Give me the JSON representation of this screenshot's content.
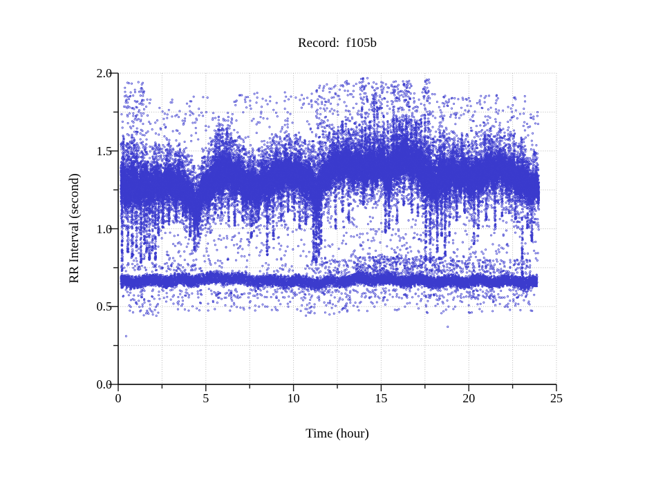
{
  "chart_data": {
    "type": "scatter",
    "title": "Record:  f105b",
    "xlabel": "Time (hour)",
    "ylabel": "RR Interval (second)",
    "xlim": [
      0,
      25
    ],
    "ylim": [
      0.0,
      2.0
    ],
    "x_major_ticks": [
      {
        "value": 0,
        "label": "0"
      },
      {
        "value": 5,
        "label": "5"
      },
      {
        "value": 10,
        "label": "10"
      },
      {
        "value": 15,
        "label": "15"
      },
      {
        "value": 20,
        "label": "20"
      },
      {
        "value": 25,
        "label": "25"
      }
    ],
    "x_minor_ticks": [
      2.5,
      7.5,
      12.5,
      17.5,
      22.5
    ],
    "y_major_ticks": [
      {
        "value": 0.0,
        "label": "0.0"
      },
      {
        "value": 0.5,
        "label": "0.5"
      },
      {
        "value": 1.0,
        "label": "1.0"
      },
      {
        "value": 1.5,
        "label": "1.5"
      },
      {
        "value": 2.0,
        "label": "2.0"
      }
    ],
    "y_minor_ticks": [
      0.25,
      0.75,
      1.25,
      1.75
    ],
    "grid": {
      "show": true,
      "x_interval": 2.5,
      "y_interval": 0.25,
      "style": "dotted",
      "color": "#b5b5b5"
    },
    "axis_color": "#151515",
    "marker": {
      "shape": "open-circle",
      "radius_px": 1.15,
      "stroke_px": 0.75,
      "color": "#3b3bcd"
    },
    "seed": 1234,
    "time_range": [
      0.15,
      24.0
    ],
    "series_model": {
      "description": "RR interval tachogram over 24 h: dense maternal band near 1.2-1.5 s with transient decelerations, dense second band near 0.66 s, sparse outliers 0.3-2.0 s",
      "main_band": {
        "count": 46000,
        "fuzz_prob": 0.1,
        "fuzz_max": 0.13,
        "profile": [
          [
            0.15,
            1.26,
            0.17
          ],
          [
            1.0,
            1.27,
            0.15
          ],
          [
            2.0,
            1.3,
            0.13
          ],
          [
            3.0,
            1.28,
            0.12
          ],
          [
            4.0,
            1.22,
            0.13
          ],
          [
            4.4,
            1.13,
            0.14
          ],
          [
            4.8,
            1.25,
            0.12
          ],
          [
            5.5,
            1.33,
            0.14
          ],
          [
            6.0,
            1.36,
            0.15
          ],
          [
            6.5,
            1.33,
            0.13
          ],
          [
            7.0,
            1.3,
            0.12
          ],
          [
            7.6,
            1.27,
            0.13
          ],
          [
            8.2,
            1.3,
            0.13
          ],
          [
            9.0,
            1.32,
            0.13
          ],
          [
            10.0,
            1.35,
            0.12
          ],
          [
            10.8,
            1.33,
            0.13
          ],
          [
            11.35,
            1.24,
            0.16
          ],
          [
            11.8,
            1.33,
            0.12
          ],
          [
            12.3,
            1.38,
            0.12
          ],
          [
            13.0,
            1.4,
            0.12
          ],
          [
            14.0,
            1.41,
            0.13
          ],
          [
            15.0,
            1.4,
            0.13
          ],
          [
            15.4,
            1.34,
            0.16
          ],
          [
            16.0,
            1.44,
            0.14
          ],
          [
            16.6,
            1.46,
            0.14
          ],
          [
            17.2,
            1.42,
            0.14
          ],
          [
            17.7,
            1.32,
            0.17
          ],
          [
            18.2,
            1.29,
            0.16
          ],
          [
            18.7,
            1.32,
            0.14
          ],
          [
            19.5,
            1.36,
            0.12
          ],
          [
            20.3,
            1.34,
            0.13
          ],
          [
            21.0,
            1.36,
            0.12
          ],
          [
            22.0,
            1.37,
            0.12
          ],
          [
            23.0,
            1.33,
            0.12
          ],
          [
            23.6,
            1.28,
            0.11
          ],
          [
            24.0,
            1.23,
            0.1
          ]
        ],
        "wobble": [
          [
            0.02,
            2.1,
            0.5
          ],
          [
            0.022,
            9.3,
            0.0
          ],
          [
            0.015,
            23.7,
            1.3
          ],
          [
            0.01,
            61.1,
            4.0
          ]
        ]
      },
      "lower_band": {
        "half_width": 0.042,
        "profile": [
          [
            0.15,
            0.66
          ],
          [
            4.0,
            0.67
          ],
          [
            6.0,
            0.685
          ],
          [
            8.0,
            0.665
          ],
          [
            10.0,
            0.66
          ],
          [
            11.5,
            0.65
          ],
          [
            13.0,
            0.665
          ],
          [
            14.0,
            0.68
          ],
          [
            15.0,
            0.675
          ],
          [
            17.0,
            0.665
          ],
          [
            19.0,
            0.66
          ],
          [
            21.0,
            0.665
          ],
          [
            23.0,
            0.66
          ],
          [
            24.0,
            0.655
          ]
        ],
        "wobble": [
          [
            0.008,
            3.7,
            1.0
          ],
          [
            0.006,
            31.0,
            2.0
          ]
        ],
        "segments": [
          [
            0.15,
            4.5,
            1900
          ],
          [
            4.5,
            8.5,
            1250
          ],
          [
            8.5,
            11.5,
            1100
          ],
          [
            11.5,
            13.5,
            700
          ],
          [
            13.5,
            19.0,
            2400
          ],
          [
            19.0,
            23.9,
            2100
          ]
        ]
      },
      "down_spikes": {
        "width": 0.06,
        "items": [
          [
            0.22,
            0.62,
            120
          ],
          [
            0.55,
            0.85,
            60
          ],
          [
            0.8,
            0.82,
            70
          ],
          [
            1.05,
            0.88,
            60
          ],
          [
            1.3,
            0.78,
            80
          ],
          [
            1.5,
            0.9,
            50
          ],
          [
            1.62,
            0.85,
            55
          ],
          [
            1.78,
            0.8,
            70
          ],
          [
            1.95,
            0.86,
            55
          ],
          [
            2.12,
            0.8,
            70
          ],
          [
            2.3,
            0.95,
            45
          ],
          [
            2.55,
            1.0,
            40
          ],
          [
            2.9,
            1.02,
            45
          ],
          [
            3.3,
            1.05,
            40
          ],
          [
            3.7,
            1.08,
            35
          ],
          [
            4.1,
            0.95,
            50
          ],
          [
            4.35,
            0.86,
            65
          ],
          [
            4.55,
            0.95,
            45
          ],
          [
            5.1,
            1.05,
            40
          ],
          [
            5.55,
            1.1,
            30
          ],
          [
            5.9,
            1.08,
            35
          ],
          [
            6.3,
            1.05,
            40
          ],
          [
            6.65,
            1.02,
            45
          ],
          [
            7.1,
            1.05,
            40
          ],
          [
            7.6,
            0.94,
            55
          ],
          [
            8.0,
            1.05,
            35
          ],
          [
            8.5,
            0.83,
            75
          ],
          [
            8.85,
            0.95,
            50
          ],
          [
            9.3,
            1.05,
            40
          ],
          [
            9.7,
            1.1,
            30
          ],
          [
            10.05,
            1.05,
            35
          ],
          [
            10.35,
            1.0,
            45
          ],
          [
            10.7,
            1.03,
            40
          ],
          [
            11.15,
            0.8,
            90
          ],
          [
            11.3,
            0.78,
            90
          ],
          [
            11.45,
            0.83,
            80
          ],
          [
            11.58,
            0.9,
            60
          ],
          [
            12.4,
            1.0,
            45
          ],
          [
            12.8,
            1.1,
            30
          ],
          [
            13.15,
            1.05,
            40
          ],
          [
            14.0,
            1.15,
            30
          ],
          [
            14.5,
            1.2,
            25
          ],
          [
            15.25,
            0.97,
            70
          ],
          [
            15.45,
            1.0,
            60
          ],
          [
            15.9,
            1.05,
            45
          ],
          [
            16.3,
            1.15,
            30
          ],
          [
            16.75,
            1.1,
            35
          ],
          [
            17.1,
            1.08,
            40
          ],
          [
            17.55,
            0.8,
            85
          ],
          [
            17.8,
            0.78,
            90
          ],
          [
            18.2,
            0.85,
            80
          ],
          [
            18.45,
            0.95,
            50
          ],
          [
            18.65,
            0.82,
            80
          ],
          [
            18.9,
            0.95,
            45
          ],
          [
            19.3,
            1.05,
            40
          ],
          [
            19.75,
            1.1,
            30
          ],
          [
            20.3,
            0.9,
            60
          ],
          [
            20.55,
            1.0,
            45
          ],
          [
            21.0,
            1.05,
            40
          ],
          [
            21.5,
            1.0,
            50
          ],
          [
            21.9,
            1.08,
            35
          ],
          [
            22.3,
            1.1,
            30
          ],
          [
            22.65,
            1.05,
            35
          ],
          [
            23.05,
            0.7,
            80
          ],
          [
            23.35,
            1.0,
            45
          ],
          [
            23.6,
            0.92,
            50
          ]
        ]
      },
      "up_spikes": {
        "width": 0.05,
        "items": [
          [
            0.3,
            1.6,
            25
          ],
          [
            0.9,
            1.58,
            20
          ],
          [
            5.75,
            1.72,
            30
          ],
          [
            5.95,
            1.68,
            25
          ],
          [
            6.2,
            1.64,
            22
          ],
          [
            11.5,
            1.6,
            20
          ],
          [
            12.05,
            1.62,
            20
          ],
          [
            12.55,
            1.68,
            25
          ],
          [
            12.8,
            1.7,
            25
          ],
          [
            13.15,
            1.66,
            22
          ],
          [
            13.9,
            1.78,
            35
          ],
          [
            14.1,
            1.74,
            30
          ],
          [
            14.35,
            1.7,
            28
          ],
          [
            14.6,
            1.86,
            40
          ],
          [
            14.78,
            1.8,
            32
          ],
          [
            15.15,
            1.74,
            30
          ],
          [
            15.38,
            1.7,
            26
          ],
          [
            15.7,
            1.77,
            30
          ],
          [
            15.88,
            1.74,
            28
          ],
          [
            16.05,
            1.72,
            26
          ],
          [
            16.2,
            1.68,
            24
          ],
          [
            16.45,
            1.74,
            28
          ],
          [
            16.7,
            1.72,
            26
          ],
          [
            17.0,
            1.7,
            26
          ],
          [
            17.28,
            1.73,
            26
          ],
          [
            17.5,
            1.78,
            30
          ],
          [
            17.68,
            1.74,
            26
          ],
          [
            18.35,
            1.68,
            22
          ],
          [
            18.6,
            1.64,
            20
          ],
          [
            19.6,
            1.6,
            18
          ],
          [
            20.9,
            1.62,
            18
          ],
          [
            21.3,
            1.58,
            16
          ],
          [
            22.6,
            1.64,
            18
          ],
          [
            23.0,
            1.6,
            16
          ]
        ]
      },
      "upper_clusters": [
        [
          0.35,
          1.5,
          1.6,
          1.95,
          60
        ],
        [
          13.8,
          14.25,
          1.8,
          1.97,
          30
        ],
        [
          14.4,
          15.05,
          1.75,
          1.92,
          35
        ],
        [
          16.2,
          16.7,
          1.78,
          1.96,
          40
        ],
        [
          17.35,
          17.75,
          1.82,
          1.96,
          25
        ],
        [
          11.3,
          12.2,
          1.6,
          1.93,
          40
        ],
        [
          15.5,
          16.1,
          1.75,
          1.95,
          30
        ]
      ],
      "upper_cloud": [
        [
          0.15,
          1.6,
          1.5,
          1.9,
          50
        ],
        [
          1.6,
          5.4,
          1.5,
          1.85,
          90
        ],
        [
          5.4,
          6.5,
          1.5,
          1.75,
          45
        ],
        [
          6.5,
          11.0,
          1.5,
          1.88,
          110
        ],
        [
          11.0,
          12.3,
          1.5,
          1.9,
          60
        ],
        [
          12.3,
          15.3,
          1.52,
          1.95,
          150
        ],
        [
          15.3,
          17.8,
          1.55,
          1.92,
          120
        ],
        [
          17.8,
          19.3,
          1.5,
          1.88,
          80
        ],
        [
          19.3,
          23.3,
          1.5,
          1.86,
          130
        ],
        [
          23.3,
          24.0,
          1.45,
          1.75,
          20
        ]
      ],
      "mid_scatter": [
        [
          0.15,
          24.0,
          0.79,
          1.08,
          560
        ]
      ],
      "lower_fringe_above": [
        [
          0.3,
          4.0,
          0.72,
          0.78,
          60
        ],
        [
          4.0,
          11.0,
          0.72,
          0.78,
          50
        ],
        [
          11.0,
          13.5,
          0.71,
          0.8,
          80
        ],
        [
          13.5,
          18.6,
          0.71,
          0.82,
          380
        ],
        [
          18.6,
          23.6,
          0.71,
          0.8,
          180
        ]
      ],
      "lower_fringe_below": [
        [
          0.15,
          23.8,
          0.555,
          0.615,
          330
        ]
      ],
      "low_scatter": [
        [
          0.6,
          2.4,
          0.44,
          0.55,
          40
        ],
        [
          2.4,
          6.5,
          0.47,
          0.56,
          30
        ],
        [
          6.5,
          10.3,
          0.47,
          0.57,
          30
        ],
        [
          10.3,
          13.3,
          0.44,
          0.56,
          55
        ],
        [
          13.3,
          17.4,
          0.47,
          0.58,
          35
        ],
        [
          17.4,
          21.0,
          0.45,
          0.58,
          40
        ],
        [
          21.0,
          23.7,
          0.47,
          0.58,
          35
        ]
      ],
      "isolated_points": [
        [
          0.45,
          0.31
        ],
        [
          18.8,
          0.37
        ]
      ]
    }
  }
}
